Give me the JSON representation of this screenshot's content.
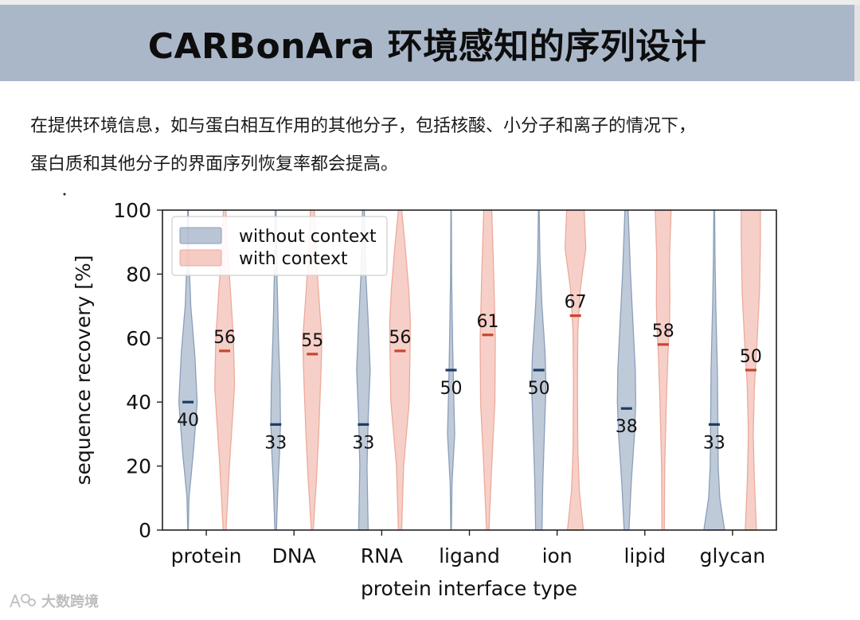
{
  "page": {
    "title": "CARBonAra 环境感知的序列设计",
    "paragraph_lines": [
      "在提供环境信息，如与蛋白相互作用的其他分子，包括核酸、小分子和离子的情况下，",
      "蛋白质和其他分子的界面序列恢复率都会提高。"
    ],
    "watermark": "大数跨境"
  },
  "chart_data": {
    "type": "violin",
    "title": "",
    "xlabel": "protein interface type",
    "ylabel": "sequence recovery [%]",
    "ylim": [
      0,
      100
    ],
    "yticks": [
      0,
      20,
      40,
      60,
      80,
      100
    ],
    "categories": [
      "protein",
      "DNA",
      "RNA",
      "ligand",
      "ion",
      "lipid",
      "glycan"
    ],
    "legend_position": "top-left",
    "grid": false,
    "series": [
      {
        "name": "without context",
        "color": "#8a9fb9",
        "median_color": "#1f3b63",
        "medians": [
          40,
          33,
          33,
          50,
          50,
          38,
          33
        ],
        "median_labels": [
          "40",
          "33",
          "33",
          "50",
          "50",
          "38",
          "33"
        ]
      },
      {
        "name": "with context",
        "color": "#eea99b",
        "median_color": "#c9452f",
        "medians": [
          56,
          55,
          56,
          61,
          67,
          58,
          50
        ],
        "median_labels": [
          "56",
          "55",
          "56",
          "61",
          "67",
          "58",
          "50"
        ]
      }
    ]
  }
}
